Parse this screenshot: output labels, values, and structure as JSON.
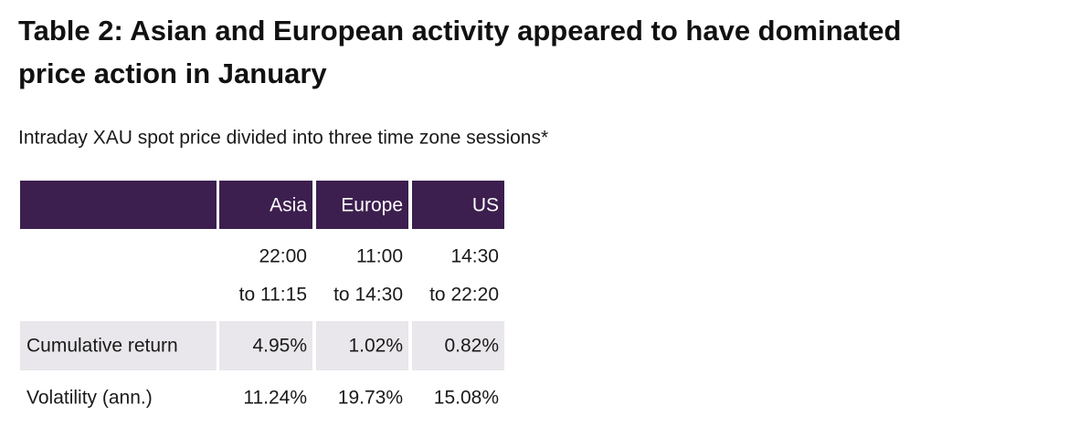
{
  "header": {
    "title_lines": [
      "Table 2: Asian and European activity appeared to have dominated",
      "price action in January"
    ],
    "subtitle": "Intraday XAU spot price divided into three time zone sessions*"
  },
  "table": {
    "columns": [
      "Asia",
      "Europe",
      "US"
    ],
    "sessions": [
      [
        "22:00",
        "to 11:15"
      ],
      [
        "11:00",
        "to 14:30"
      ],
      [
        "14:30",
        "to 22:20"
      ]
    ],
    "rows": [
      {
        "label": "Cumulative return",
        "values": [
          "4.95%",
          "1.02%",
          "0.82%"
        ]
      },
      {
        "label": "Volatility (ann.)",
        "values": [
          "11.24%",
          "19.73%",
          "15.08%"
        ]
      }
    ]
  }
}
